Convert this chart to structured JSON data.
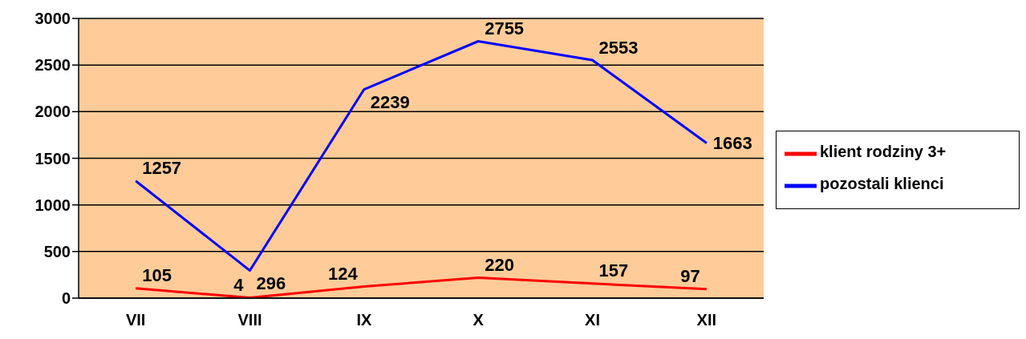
{
  "chart_data": {
    "type": "line",
    "categories": [
      "VII",
      "VIII",
      "IX",
      "X",
      "XI",
      "XII"
    ],
    "series": [
      {
        "name": "klient rodziny 3+",
        "color": "#ff0000",
        "values": [
          105,
          4,
          124,
          220,
          157,
          97
        ]
      },
      {
        "name": "pozostali klienci",
        "color": "#0000ff",
        "values": [
          1257,
          296,
          2239,
          2755,
          2553,
          1663
        ]
      }
    ],
    "ylim": [
      0,
      3000
    ],
    "yticks": [
      0,
      500,
      1000,
      1500,
      2000,
      2500,
      3000
    ],
    "grid": "y",
    "legend": "right",
    "marker": "none",
    "data_labels": true
  }
}
